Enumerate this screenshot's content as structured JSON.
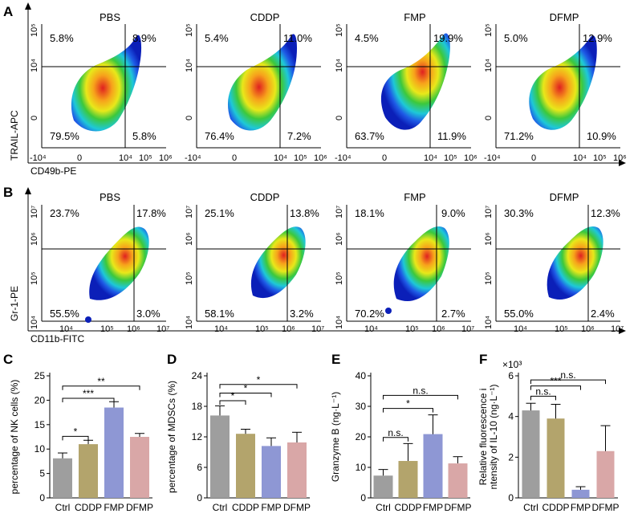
{
  "panel_labels": [
    "A",
    "B",
    "C",
    "D",
    "E",
    "F"
  ],
  "flow_a": {
    "y_axis_label": "TRAIL-APC",
    "x_axis_label": "CD49b-PE",
    "y_ticks": [
      "10⁵",
      "10⁴",
      "0"
    ],
    "x_ticks": [
      "-10⁴",
      "0",
      "10⁴",
      "10⁵",
      "10⁶"
    ],
    "plots": [
      {
        "title": "PBS",
        "ul": "5.8%",
        "ur": "8.9%",
        "ll": "79.5%",
        "lr": "5.8%"
      },
      {
        "title": "CDDP",
        "ul": "5.4%",
        "ur": "11.0%",
        "ll": "76.4%",
        "lr": "7.2%"
      },
      {
        "title": "FMP",
        "ul": "4.5%",
        "ur": "19.9%",
        "ll": "63.7%",
        "lr": "11.9%"
      },
      {
        "title": "DFMP",
        "ul": "5.0%",
        "ur": "12.9%",
        "ll": "71.2%",
        "lr": "10.9%"
      }
    ]
  },
  "flow_b": {
    "y_axis_label": "Gr-1-PE",
    "x_axis_label": "CD11b-FITC",
    "y_ticks": [
      "10⁷",
      "10⁶",
      "10⁵",
      "10⁴"
    ],
    "x_ticks": [
      "10⁴",
      "10⁵",
      "10⁶",
      "10⁷"
    ],
    "plots": [
      {
        "title": "PBS",
        "ul": "23.7%",
        "ur": "17.8%",
        "ll": "55.5%",
        "lr": "3.0%"
      },
      {
        "title": "CDDP",
        "ul": "25.1%",
        "ur": "13.8%",
        "ll": "58.1%",
        "lr": "3.2%"
      },
      {
        "title": "FMP",
        "ul": "18.1%",
        "ur": "9.0%",
        "ll": "70.2%",
        "lr": "2.7%"
      },
      {
        "title": "DFMP",
        "ul": "30.3%",
        "ur": "12.3%",
        "ll": "55.0%",
        "lr": "2.4%"
      }
    ]
  },
  "colors": {
    "Ctrl": "#9e9e9e",
    "CDDP": "#b3a46c",
    "FMP": "#8e97d4",
    "DFMP": "#d9a7a7",
    "axis": "#000000"
  },
  "chart_data": [
    {
      "type": "bar",
      "panel": "C",
      "categories": [
        "Ctrl",
        "CDDP",
        "FMP",
        "DFMP"
      ],
      "values": [
        8.1,
        11.0,
        18.5,
        12.5
      ],
      "errors": [
        1.1,
        0.8,
        1.2,
        0.7
      ],
      "ylabel": "percentage of NK cells (%)",
      "ylim": [
        0,
        25
      ],
      "yticks": [
        0,
        5,
        10,
        15,
        20,
        25
      ],
      "ytick_labels": [
        "0",
        "5",
        "10",
        "15",
        "20",
        "25"
      ],
      "exponent": "",
      "sig": [
        {
          "from": 0,
          "to": 1,
          "label": "*",
          "y": 12.6
        },
        {
          "from": 0,
          "to": 2,
          "label": "***",
          "y": 20.4
        },
        {
          "from": 0,
          "to": 3,
          "label": "**",
          "y": 22.9
        }
      ]
    },
    {
      "type": "bar",
      "panel": "D",
      "categories": [
        "Ctrl",
        "CDDP",
        "FMP",
        "DFMP"
      ],
      "values": [
        16.2,
        12.6,
        10.2,
        10.9
      ],
      "errors": [
        1.9,
        0.9,
        1.6,
        2.0
      ],
      "ylabel": "percentage of MDSCs (%)",
      "ylim": [
        0,
        24
      ],
      "yticks": [
        0,
        6,
        12,
        18,
        24
      ],
      "ytick_labels": [
        "0",
        "6",
        "12",
        "18",
        "24"
      ],
      "exponent": "",
      "sig": [
        {
          "from": 0,
          "to": 1,
          "label": "*",
          "y": 19.1
        },
        {
          "from": 0,
          "to": 2,
          "label": "*",
          "y": 20.6
        },
        {
          "from": 0,
          "to": 3,
          "label": "*",
          "y": 22.3
        }
      ]
    },
    {
      "type": "bar",
      "panel": "E",
      "categories": [
        "Ctrl",
        "CDDP",
        "FMP",
        "DFMP"
      ],
      "values": [
        7.3,
        12.1,
        20.9,
        11.3
      ],
      "errors": [
        2.0,
        5.7,
        6.3,
        2.2
      ],
      "ylabel": "Granzyme B (ng·L⁻¹)",
      "ylim": [
        0,
        40
      ],
      "yticks": [
        0,
        10,
        20,
        30,
        40
      ],
      "ytick_labels": [
        "0",
        "10",
        "20",
        "30",
        "40"
      ],
      "exponent": "",
      "sig": [
        {
          "from": 0,
          "to": 1,
          "label": "n.s.",
          "y": 19.8
        },
        {
          "from": 0,
          "to": 2,
          "label": "*",
          "y": 29.3
        },
        {
          "from": 0,
          "to": 3,
          "label": "n.s.",
          "y": 33.6
        }
      ]
    },
    {
      "type": "bar",
      "panel": "F",
      "categories": [
        "Ctrl",
        "CDDP",
        "FMP",
        "DFMP"
      ],
      "values": [
        4.3,
        3.9,
        0.4,
        2.3
      ],
      "errors": [
        0.35,
        0.7,
        0.15,
        1.25
      ],
      "ylabel": "Relative fluorescence intensity of IL-10 (ng·L⁻¹)",
      "ylim": [
        0,
        6
      ],
      "yticks": [
        0,
        2,
        4,
        6
      ],
      "ytick_labels": [
        "0",
        "2",
        "4",
        "6"
      ],
      "exponent": "×10³",
      "sig": [
        {
          "from": 0,
          "to": 1,
          "label": "n.s.",
          "y": 5.0
        },
        {
          "from": 0,
          "to": 2,
          "label": "***",
          "y": 5.5
        },
        {
          "from": 0,
          "to": 3,
          "label": "n.s.",
          "y": 5.8
        }
      ]
    }
  ]
}
